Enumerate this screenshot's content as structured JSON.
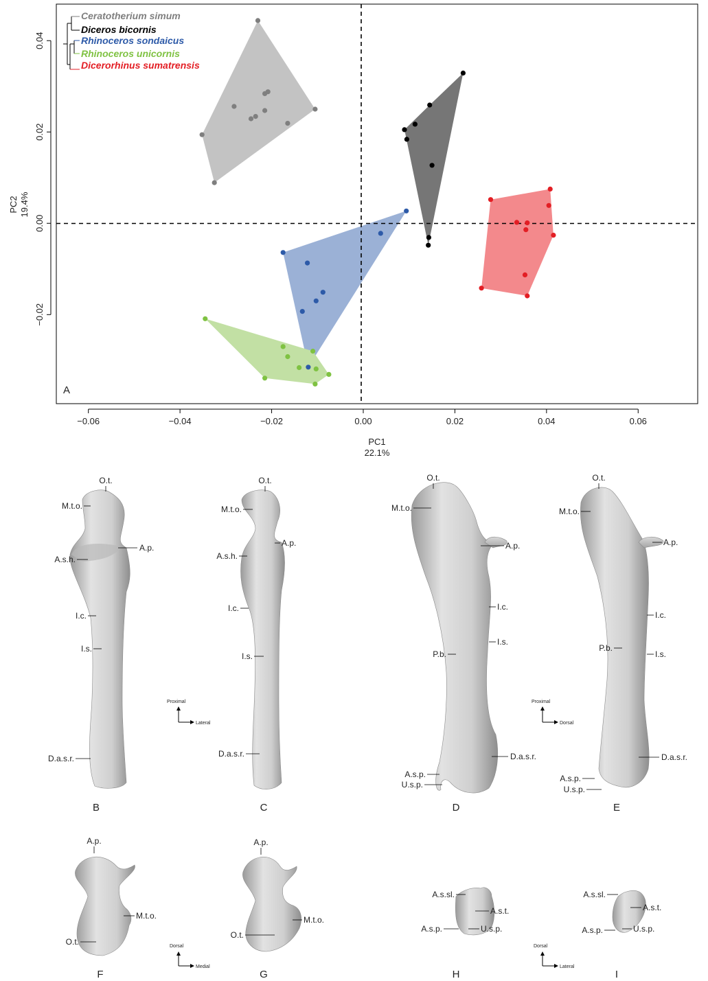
{
  "chart_data": {
    "type": "scatter",
    "xlabel": "PC1",
    "xlabel_pct": "22.1%",
    "ylabel": "PC2",
    "ylabel_pct": "19.4%",
    "xlim": [
      -0.067,
      0.073
    ],
    "ylim": [
      -0.0395,
      0.048
    ],
    "x_ticks": [
      -0.06,
      -0.04,
      -0.02,
      0.0,
      0.02,
      0.04,
      0.06
    ],
    "x_tick_labels": [
      "−0.06",
      "−0.04",
      "−0.02",
      "0.00",
      "0.02",
      "0.04",
      "0.06"
    ],
    "y_ticks": [
      -0.02,
      0.0,
      0.02,
      0.04
    ],
    "y_tick_labels": [
      "−0.02",
      "0.00",
      "0.02",
      "0.04"
    ],
    "panel_label": "A",
    "reference_lines": {
      "x": 0,
      "y": 0,
      "style": "dashed"
    },
    "legend_position": "top-left",
    "series": [
      {
        "name": "Ceratotherium simum",
        "color": "#7f7f7f",
        "hull_color": "#c3c3c3",
        "points": [
          [
            -0.023,
            0.0444
          ],
          [
            -0.0282,
            0.0256
          ],
          [
            -0.0215,
            0.0284
          ],
          [
            -0.0208,
            0.0288
          ],
          [
            -0.0215,
            0.0247
          ],
          [
            -0.0235,
            0.0234
          ],
          [
            -0.0245,
            0.0229
          ],
          [
            -0.0165,
            0.0219
          ],
          [
            -0.0105,
            0.025
          ],
          [
            -0.0352,
            0.0194
          ],
          [
            -0.0325,
            0.0089
          ]
        ]
      },
      {
        "name": "Diceros bicornis",
        "color": "#000000",
        "hull_color": "#767676",
        "points": [
          [
            0.0218,
            0.0329
          ],
          [
            0.0145,
            0.0259
          ],
          [
            0.0113,
            0.0217
          ],
          [
            0.009,
            0.0205
          ],
          [
            0.0095,
            0.0184
          ],
          [
            0.015,
            0.0127
          ],
          [
            0.0143,
            -0.0031
          ],
          [
            0.0142,
            -0.0048
          ]
        ]
      },
      {
        "name": "Rhinoceros sondaicus",
        "color": "#2d5aa8",
        "hull_color": "#9bb1d6",
        "points": [
          [
            0.0094,
            0.0027
          ],
          [
            0.0038,
            -0.0022
          ],
          [
            -0.0175,
            -0.0064
          ],
          [
            -0.0122,
            -0.0087
          ],
          [
            -0.0088,
            -0.0151
          ],
          [
            -0.0103,
            -0.017
          ],
          [
            -0.0133,
            -0.0193
          ],
          [
            -0.012,
            -0.0315
          ]
        ]
      },
      {
        "name": "Rhinoceros unicornis",
        "color": "#7fc242",
        "hull_color": "#c2e0a4",
        "points": [
          [
            -0.0345,
            -0.0209
          ],
          [
            -0.0175,
            -0.027
          ],
          [
            -0.0165,
            -0.0292
          ],
          [
            -0.011,
            -0.028
          ],
          [
            -0.014,
            -0.0316
          ],
          [
            -0.0103,
            -0.0319
          ],
          [
            -0.0075,
            -0.0331
          ],
          [
            -0.0215,
            -0.0339
          ],
          [
            -0.0105,
            -0.0352
          ]
        ]
      },
      {
        "name": "Dicerorhinus sumatrensis",
        "color": "#e31e24",
        "hull_color": "#f3898c",
        "points": [
          [
            0.0408,
            0.0075
          ],
          [
            0.0278,
            0.0052
          ],
          [
            0.0405,
            0.0039
          ],
          [
            0.0335,
            0.0002
          ],
          [
            0.0358,
            0.0001
          ],
          [
            0.0355,
            -0.0014
          ],
          [
            0.0415,
            -0.0026
          ],
          [
            0.0353,
            -0.0113
          ],
          [
            0.0258,
            -0.0142
          ],
          [
            0.0358,
            -0.0159
          ]
        ]
      }
    ]
  },
  "panels": {
    "B": {
      "letter": "B",
      "labels": {
        "ot": "O.t.",
        "mto": "M.t.o.",
        "ap": "A.p.",
        "ash": "A.s.h.",
        "ic": "I.c.",
        "is": "I.s.",
        "dasr": "D.a.s.r."
      }
    },
    "C": {
      "letter": "C",
      "labels": {
        "ot": "O.t.",
        "mto": "M.t.o.",
        "ap": "A.p.",
        "ash": "A.s.h.",
        "ic": "I.c.",
        "is": "I.s.",
        "dasr": "D.a.s.r."
      }
    },
    "D": {
      "letter": "D",
      "labels": {
        "ot": "O.t.",
        "mto": "M.t.o.",
        "ap": "A.p.",
        "ic": "I.c.",
        "is": "I.s.",
        "pb": "P.b.",
        "dasr": "D.a.s.r.",
        "asp": "A.s.p.",
        "usp": "U.s.p."
      }
    },
    "E": {
      "letter": "E",
      "labels": {
        "ot": "O.t.",
        "mto": "M.t.o.",
        "ap": "A.p.",
        "ic": "I.c.",
        "pb": "P.b.",
        "is": "I.s.",
        "dasr": "D.a.s.r.",
        "asp": "A.s.p.",
        "usp": "U.s.p."
      }
    },
    "F": {
      "letter": "F",
      "labels": {
        "ap": "A.p.",
        "mto": "M.t.o.",
        "ot": "O.t."
      }
    },
    "G": {
      "letter": "G",
      "labels": {
        "ap": "A.p.",
        "mto": "M.t.o.",
        "ot": "O.t."
      }
    },
    "H": {
      "letter": "H",
      "labels": {
        "assl": "A.s.sl.",
        "ast": "A.s.t.",
        "asp": "A.s.p.",
        "usp": "U.s.p."
      }
    },
    "I": {
      "letter": "I",
      "labels": {
        "assl": "A.s.sl.",
        "ast": "A.s.t.",
        "asp": "A.s.p.",
        "usp": "U.s.p."
      }
    }
  },
  "orientation": {
    "bc": {
      "up": "Proximal",
      "right": "Lateral"
    },
    "de": {
      "up": "Proximal",
      "right": "Dorsal"
    },
    "fg": {
      "up": "Dorsal",
      "right": "Medial"
    },
    "hi": {
      "up": "Dorsal",
      "right": "Lateral"
    }
  }
}
